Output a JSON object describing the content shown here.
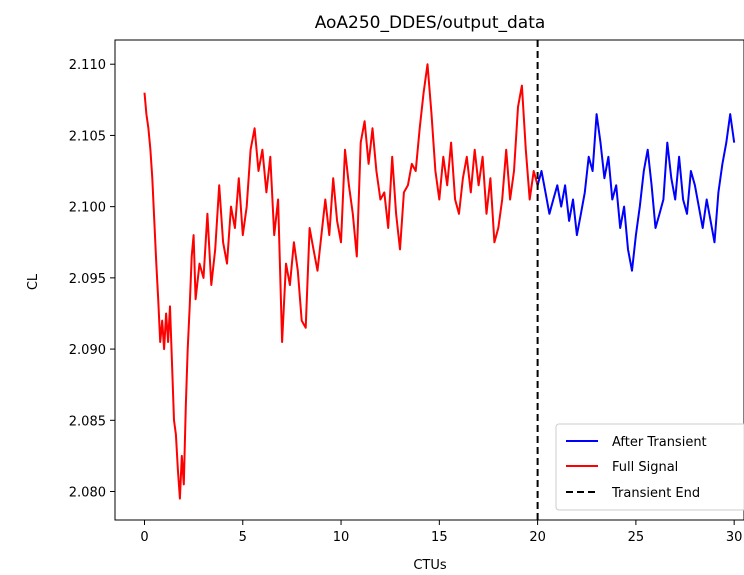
{
  "chart_data": {
    "type": "line",
    "title": "AoA250_DDES/output_data",
    "xlabel": "CTUs",
    "ylabel": "CL",
    "xlim": [
      -1.5,
      30.5
    ],
    "ylim": [
      2.078,
      2.1117
    ],
    "xticks": [
      0,
      5,
      10,
      15,
      20,
      25,
      30
    ],
    "yticks": [
      2.08,
      2.085,
      2.09,
      2.095,
      2.1,
      2.105,
      2.11
    ],
    "grid": false,
    "legend_position": "bottom-right",
    "vline": {
      "x": 20,
      "label": "Transient End",
      "color": "#000000",
      "style": "dashed"
    },
    "series": [
      {
        "name": "Full Signal",
        "color": "#ff0000",
        "x": [
          0.0,
          0.1,
          0.2,
          0.3,
          0.4,
          0.5,
          0.6,
          0.7,
          0.8,
          0.9,
          1.0,
          1.1,
          1.2,
          1.3,
          1.4,
          1.5,
          1.6,
          1.7,
          1.8,
          1.9,
          2.0,
          2.1,
          2.2,
          2.3,
          2.4,
          2.5,
          2.6,
          2.8,
          3.0,
          3.2,
          3.4,
          3.6,
          3.8,
          4.0,
          4.2,
          4.4,
          4.6,
          4.8,
          5.0,
          5.2,
          5.4,
          5.6,
          5.8,
          6.0,
          6.2,
          6.4,
          6.6,
          6.8,
          7.0,
          7.2,
          7.4,
          7.6,
          7.8,
          8.0,
          8.2,
          8.4,
          8.6,
          8.8,
          9.0,
          9.2,
          9.4,
          9.6,
          9.8,
          10.0,
          10.2,
          10.4,
          10.6,
          10.8,
          11.0,
          11.2,
          11.4,
          11.6,
          11.8,
          12.0,
          12.2,
          12.4,
          12.6,
          12.8,
          13.0,
          13.2,
          13.4,
          13.6,
          13.8,
          14.0,
          14.2,
          14.4,
          14.6,
          14.8,
          15.0,
          15.2,
          15.4,
          15.6,
          15.8,
          16.0,
          16.2,
          16.4,
          16.6,
          16.8,
          17.0,
          17.2,
          17.4,
          17.6,
          17.8,
          18.0,
          18.2,
          18.4,
          18.6,
          18.8,
          19.0,
          19.2,
          19.4,
          19.6,
          19.8,
          20.0
        ],
        "values": [
          2.108,
          2.1065,
          2.1055,
          2.104,
          2.102,
          2.099,
          2.096,
          2.0935,
          2.0905,
          2.092,
          2.09,
          2.0925,
          2.0905,
          2.093,
          2.089,
          2.085,
          2.084,
          2.0815,
          2.0795,
          2.0825,
          2.0805,
          2.086,
          2.09,
          2.093,
          2.0965,
          2.098,
          2.0935,
          2.096,
          2.095,
          2.0995,
          2.0945,
          2.097,
          2.1015,
          2.0975,
          2.096,
          2.1,
          2.0985,
          2.102,
          2.098,
          2.1,
          2.104,
          2.1055,
          2.1025,
          2.104,
          2.101,
          2.1035,
          2.098,
          2.1005,
          2.0905,
          2.096,
          2.0945,
          2.0975,
          2.0955,
          2.092,
          2.0915,
          2.0985,
          2.097,
          2.0955,
          2.098,
          2.1005,
          2.098,
          2.102,
          2.099,
          2.0975,
          2.104,
          2.1015,
          2.0995,
          2.0965,
          2.1045,
          2.106,
          2.103,
          2.1055,
          2.1025,
          2.1005,
          2.101,
          2.0985,
          2.1035,
          2.0995,
          2.097,
          2.101,
          2.1015,
          2.103,
          2.1025,
          2.1055,
          2.108,
          2.11,
          2.1065,
          2.1025,
          2.1005,
          2.1035,
          2.1015,
          2.1045,
          2.1005,
          2.0995,
          2.102,
          2.1035,
          2.101,
          2.104,
          2.1015,
          2.1035,
          2.0995,
          2.102,
          2.0975,
          2.0985,
          2.1005,
          2.104,
          2.1005,
          2.1025,
          2.107,
          2.1085,
          2.104,
          2.1005,
          2.1025,
          2.1015
        ]
      },
      {
        "name": "After Transient",
        "color": "#0000ff",
        "x": [
          20.0,
          20.2,
          20.4,
          20.6,
          20.8,
          21.0,
          21.2,
          21.4,
          21.6,
          21.8,
          22.0,
          22.2,
          22.4,
          22.6,
          22.8,
          23.0,
          23.2,
          23.4,
          23.6,
          23.8,
          24.0,
          24.2,
          24.4,
          24.6,
          24.8,
          25.0,
          25.2,
          25.4,
          25.6,
          25.8,
          26.0,
          26.2,
          26.4,
          26.6,
          26.8,
          27.0,
          27.2,
          27.4,
          27.6,
          27.8,
          28.0,
          28.2,
          28.4,
          28.6,
          28.8,
          29.0,
          29.2,
          29.4,
          29.6,
          29.8,
          30.0
        ],
        "values": [
          2.1015,
          2.1025,
          2.101,
          2.0995,
          2.1005,
          2.1015,
          2.1,
          2.1015,
          2.099,
          2.1005,
          2.098,
          2.0995,
          2.101,
          2.1035,
          2.1025,
          2.1065,
          2.1045,
          2.102,
          2.1035,
          2.1005,
          2.1015,
          2.0985,
          2.1,
          2.097,
          2.0955,
          2.098,
          2.1,
          2.1025,
          2.104,
          2.1015,
          2.0985,
          2.0995,
          2.1005,
          2.1045,
          2.102,
          2.1005,
          2.1035,
          2.1005,
          2.0995,
          2.1025,
          2.1015,
          2.1,
          2.0985,
          2.1005,
          2.099,
          2.0975,
          2.101,
          2.103,
          2.1045,
          2.1065,
          2.1045
        ]
      }
    ]
  }
}
